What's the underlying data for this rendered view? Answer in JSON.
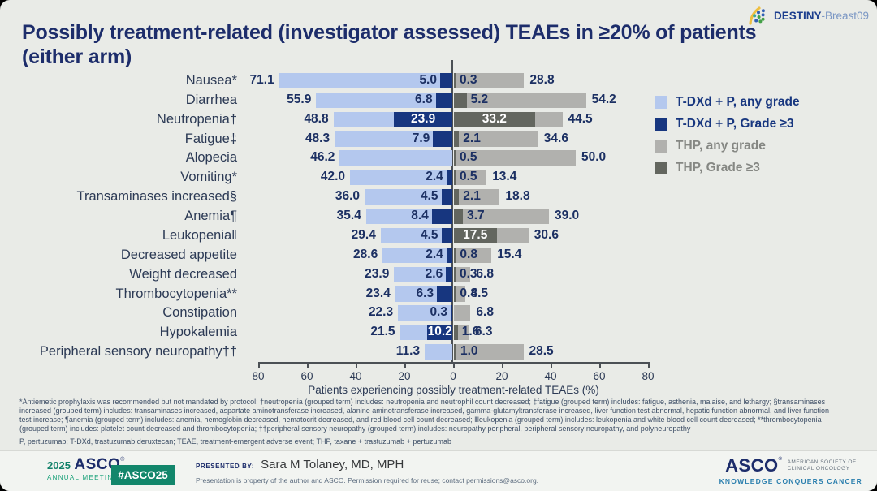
{
  "slide": {
    "title_line1": "Possibly treatment-related (investigator assessed) TEAEs in ≥20% of patients",
    "title_line2": "(either arm)",
    "trial_logo": {
      "bold": "DESTINY",
      "light": "-Breast09"
    }
  },
  "chart_data": {
    "type": "bar",
    "orientation": "horizontal-diverging",
    "xlabel": "Patients experiencing possibly treatment-related TEAEs (%)",
    "axis_ticks": [
      80,
      60,
      40,
      20,
      0,
      20,
      40,
      60,
      80
    ],
    "axis_max_each_side": 80,
    "grid": false,
    "legend_position": "right",
    "categories": [
      "Nausea*",
      "Diarrhea",
      "Neutropenia†",
      "Fatigue‡",
      "Alopecia",
      "Vomiting*",
      "Transaminases increased§",
      "Anemia¶",
      "Leukopenia‖",
      "Decreased appetite",
      "Weight decreased",
      "Thrombocytopenia**",
      "Constipation",
      "Hypokalemia",
      "Peripheral sensory neuropathy††"
    ],
    "series": [
      {
        "name": "T-DXd + P, any grade",
        "side": "left",
        "color": "#b4c8ee",
        "values": [
          71.1,
          55.9,
          48.8,
          48.3,
          46.2,
          42.0,
          36.0,
          35.4,
          29.4,
          28.6,
          23.9,
          23.4,
          22.3,
          21.5,
          11.3
        ]
      },
      {
        "name": "T-DXd + P, Grade ≥3",
        "side": "left",
        "color": "#17367f",
        "values": [
          5.0,
          6.8,
          23.9,
          7.9,
          null,
          2.4,
          4.5,
          8.4,
          4.5,
          2.4,
          2.6,
          6.3,
          0.3,
          10.2,
          null
        ]
      },
      {
        "name": "THP, Grade ≥3",
        "side": "right",
        "color": "#63665f",
        "values": [
          0.3,
          5.2,
          33.2,
          2.1,
          0.5,
          0.5,
          2.1,
          3.7,
          17.5,
          0.8,
          0.3,
          0.8,
          null,
          1.6,
          1.0
        ]
      },
      {
        "name": "THP, any grade",
        "side": "right",
        "color": "#b1b1ae",
        "values": [
          28.8,
          54.2,
          44.5,
          34.6,
          50.0,
          13.4,
          18.8,
          39.0,
          30.6,
          15.4,
          6.8,
          4.5,
          6.8,
          6.3,
          28.5
        ]
      }
    ]
  },
  "legend": {
    "items": [
      {
        "label": "T-DXd + P, any grade",
        "swatch": "#b4c8ee",
        "text_color": "#17367f"
      },
      {
        "label": "T-DXd + P, Grade ≥3",
        "swatch": "#17367f",
        "text_color": "#17367f"
      },
      {
        "label": "THP, any grade",
        "swatch": "#b1b1ae",
        "text_color": "#858783"
      },
      {
        "label": "THP, Grade ≥3",
        "swatch": "#63665f",
        "text_color": "#858783"
      }
    ]
  },
  "footnotes": {
    "lines": [
      "*Antiemetic prophylaxis was recommended but not mandated by protocol; †neutropenia (grouped term) includes: neutropenia and neutrophil count decreased; ‡fatigue (grouped term) includes: fatigue, asthenia, malaise, and lethargy; §transaminases",
      "increased (grouped term) includes: transaminases increased, aspartate aminotransferase increased, alanine aminotransferase increased, gamma-glutamyltransferase increased, liver function test abnormal, hepatic function abnormal, and liver function",
      "test increase; ¶anemia (grouped term) includes: anemia, hemoglobin decreased, hematocrit decreased, and red blood cell count decreased; ‖leukopenia (grouped term) includes: leukopenia and white blood cell count decreased; **thrombocytopenia",
      "(grouped term) includes: platelet count decreased and thrombocytopenia; ††peripheral sensory neuropathy (grouped term) includes: neuropathy peripheral, peripheral sensory neuropathy, and polyneuropathy"
    ],
    "abbreviations": "P, pertuzumab; T-DXd, trastuzumab deruxtecan; TEAE, treatment-emergent adverse event; THP, taxane + trastuzumab + pertuzumab"
  },
  "footer": {
    "year": "2025",
    "org": "ASCO",
    "meeting": "ANNUAL MEETING",
    "hashtag": "#ASCO25",
    "presented_by_label": "PRESENTED BY:",
    "presenter": "Sara M Tolaney, MD, MPH",
    "permission": "Presentation is property of the author and ASCO. Permission required for reuse; contact permissions@asco.org.",
    "asco_logo": {
      "name": "ASCO",
      "society_line1": "AMERICAN SOCIETY OF",
      "society_line2": "CLINICAL ONCOLOGY",
      "tagline": "KNOWLEDGE CONQUERS CANCER"
    }
  },
  "colors": {
    "background": "#e9ebe7",
    "title": "#1d2d6b",
    "number_text": "#1c3063",
    "axis": "#4b5055",
    "accent_green": "#12866b",
    "tagline_blue": "#2b7fae"
  }
}
